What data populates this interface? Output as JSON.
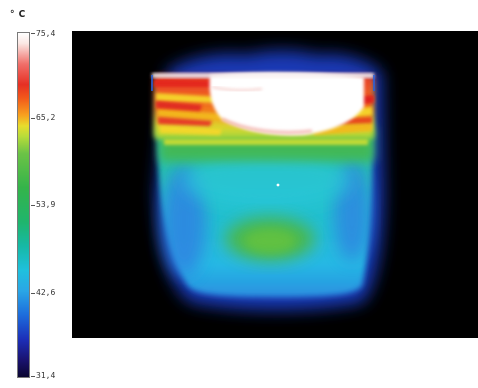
{
  "scale": {
    "unit": "° C",
    "ticks": [
      "75,4",
      "65,2",
      "53,9",
      "42,6",
      "31,4"
    ]
  },
  "thermal_image": {
    "background_color": "#000000",
    "hotspot": "top"
  }
}
